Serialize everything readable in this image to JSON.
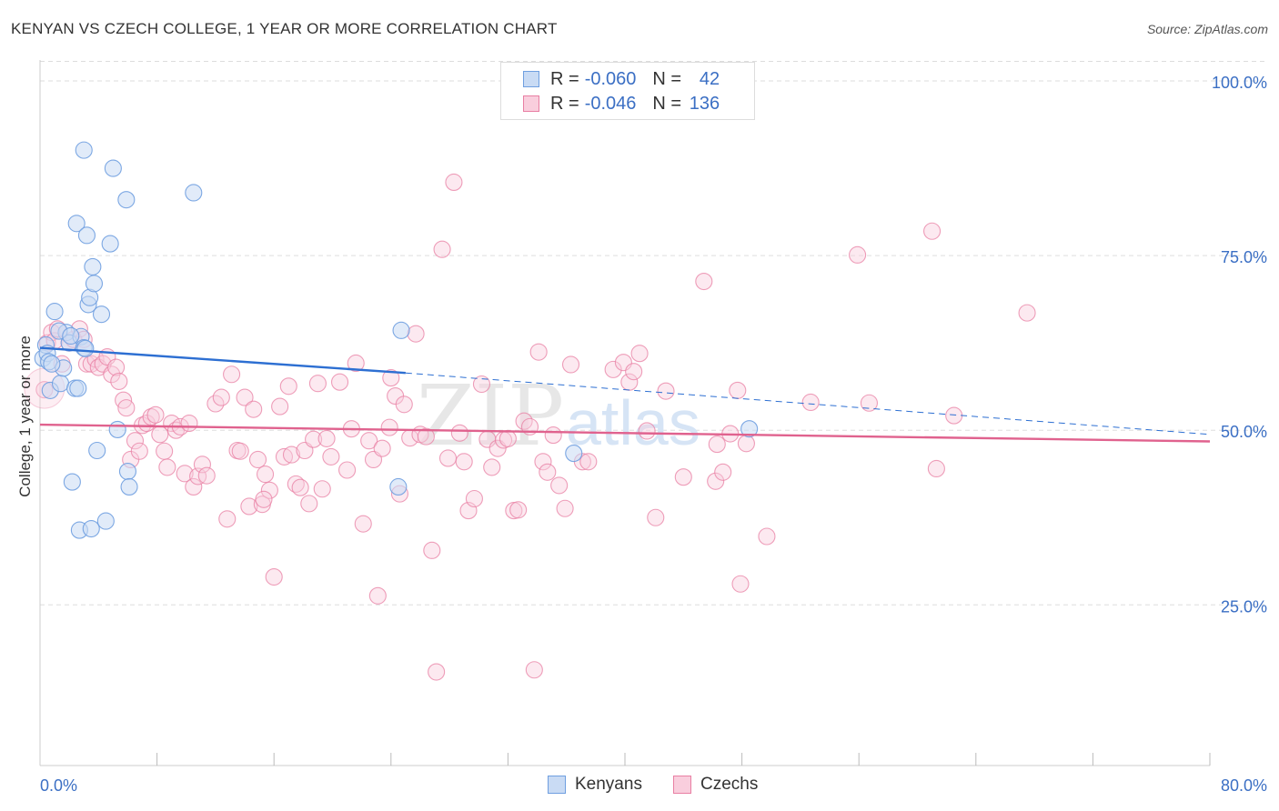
{
  "header": {
    "title": "KENYAN VS CZECH COLLEGE, 1 YEAR OR MORE CORRELATION CHART",
    "source": "Source: ZipAtlas.com"
  },
  "colors": {
    "kenyan": "#6f9fe0",
    "kenyan_fill": "#c9dbf4",
    "kenyan_line": "#2d6fd2",
    "czech": "#e87fa3",
    "czech_fill": "#f9cedd",
    "czech_line": "#e0628e",
    "axis_text": "#3b6fc4",
    "grid": "#dddddd"
  },
  "legend_top": {
    "kenyans": {
      "r_label": "R =",
      "r_value": "-0.060",
      "n_label": "N =",
      "n_value": "42"
    },
    "czechs": {
      "r_label": "R =",
      "r_value": "-0.046",
      "n_label": "N =",
      "n_value": "136"
    }
  },
  "legend_bottom": {
    "kenyans": "Kenyans",
    "czechs": "Czechs"
  },
  "watermark": {
    "zip": "ZIP",
    "atlas": "atlas"
  },
  "chart_data": {
    "type": "scatter",
    "title": "KENYAN VS CZECH COLLEGE, 1 YEAR OR MORE CORRELATION CHART",
    "xlabel": "",
    "ylabel": "College, 1 year or more",
    "xlim": [
      0,
      80
    ],
    "ylim": [
      2,
      103
    ],
    "x_tick_labels": [
      "0.0%",
      "80.0%"
    ],
    "y_ticks": [
      25,
      50,
      75,
      100
    ],
    "y_tick_labels": [
      "25.0%",
      "50.0%",
      "75.0%",
      "100.0%"
    ],
    "grid": true,
    "legend_position": "top-center",
    "series": [
      {
        "name": "Kenyans",
        "r": -0.06,
        "n": 42,
        "trend": {
          "x0": 0,
          "y0": 61.8,
          "x1": 25,
          "y1": 58.2,
          "dashed_to_x": 80,
          "dashed_to_y": 49.4
        },
        "points": [
          [
            0.2,
            60.3
          ],
          [
            0.4,
            62.2
          ],
          [
            0.5,
            61.0
          ],
          [
            0.6,
            59.8
          ],
          [
            0.7,
            55.7
          ],
          [
            1.0,
            67.0
          ],
          [
            1.4,
            56.7
          ],
          [
            1.6,
            58.9
          ],
          [
            1.8,
            64.0
          ],
          [
            2.0,
            62.5
          ],
          [
            2.2,
            42.6
          ],
          [
            2.4,
            56.0
          ],
          [
            2.6,
            56.0
          ],
          [
            2.5,
            79.6
          ],
          [
            2.7,
            35.7
          ],
          [
            2.8,
            63.4
          ],
          [
            3.0,
            61.8
          ],
          [
            3.0,
            90.1
          ],
          [
            3.2,
            77.9
          ],
          [
            3.3,
            68.0
          ],
          [
            3.4,
            69.0
          ],
          [
            3.5,
            35.9
          ],
          [
            3.6,
            73.4
          ],
          [
            3.7,
            71.0
          ],
          [
            3.9,
            47.1
          ],
          [
            4.2,
            66.6
          ],
          [
            4.5,
            37.0
          ],
          [
            4.8,
            76.7
          ],
          [
            5.0,
            87.5
          ],
          [
            5.3,
            50.1
          ],
          [
            5.9,
            83.0
          ],
          [
            6.0,
            44.1
          ],
          [
            6.1,
            41.9
          ],
          [
            10.5,
            84.0
          ],
          [
            24.7,
            64.3
          ],
          [
            24.5,
            41.9
          ],
          [
            36.5,
            46.7
          ],
          [
            48.5,
            50.2
          ],
          [
            1.3,
            64.2
          ],
          [
            2.1,
            63.5
          ],
          [
            0.8,
            59.5
          ],
          [
            3.1,
            61.7
          ]
        ]
      },
      {
        "name": "Czechs",
        "r": -0.046,
        "n": 136,
        "trend": {
          "x0": 0,
          "y0": 50.8,
          "x1": 80,
          "y1": 48.4
        },
        "points": [
          [
            0.3,
            55.8
          ],
          [
            0.5,
            62.5
          ],
          [
            0.8,
            64.0
          ],
          [
            1.0,
            62.8
          ],
          [
            1.2,
            64.5
          ],
          [
            1.5,
            59.5
          ],
          [
            2.0,
            62.5
          ],
          [
            2.3,
            63.0
          ],
          [
            2.7,
            64.5
          ],
          [
            3.0,
            63.0
          ],
          [
            3.2,
            59.5
          ],
          [
            3.5,
            59.5
          ],
          [
            3.8,
            60.2
          ],
          [
            4.0,
            59.0
          ],
          [
            4.3,
            59.5
          ],
          [
            4.6,
            60.5
          ],
          [
            4.9,
            58.0
          ],
          [
            5.2,
            59.0
          ],
          [
            5.4,
            57.0
          ],
          [
            5.7,
            54.3
          ],
          [
            5.9,
            53.2
          ],
          [
            6.2,
            45.8
          ],
          [
            6.5,
            48.5
          ],
          [
            6.8,
            47.0
          ],
          [
            7.0,
            50.7
          ],
          [
            7.3,
            51.0
          ],
          [
            7.6,
            51.9
          ],
          [
            7.9,
            52.2
          ],
          [
            8.2,
            49.4
          ],
          [
            8.5,
            47.0
          ],
          [
            8.7,
            44.7
          ],
          [
            9.0,
            51.0
          ],
          [
            9.3,
            50.0
          ],
          [
            9.6,
            50.5
          ],
          [
            9.9,
            43.8
          ],
          [
            10.2,
            51.0
          ],
          [
            10.5,
            41.9
          ],
          [
            10.8,
            43.4
          ],
          [
            11.1,
            45.1
          ],
          [
            11.4,
            43.5
          ],
          [
            12.0,
            53.8
          ],
          [
            12.4,
            54.7
          ],
          [
            12.8,
            37.3
          ],
          [
            13.1,
            58.0
          ],
          [
            13.5,
            47.1
          ],
          [
            13.7,
            47.0
          ],
          [
            14.0,
            54.7
          ],
          [
            14.3,
            39.1
          ],
          [
            14.6,
            53.0
          ],
          [
            14.9,
            45.8
          ],
          [
            15.2,
            39.4
          ],
          [
            15.4,
            43.7
          ],
          [
            15.7,
            41.4
          ],
          [
            16.0,
            29.0
          ],
          [
            16.4,
            53.4
          ],
          [
            16.7,
            46.2
          ],
          [
            17.0,
            56.3
          ],
          [
            17.2,
            46.5
          ],
          [
            17.5,
            42.3
          ],
          [
            17.8,
            41.8
          ],
          [
            18.1,
            47.1
          ],
          [
            18.4,
            39.5
          ],
          [
            18.7,
            48.7
          ],
          [
            19.0,
            56.7
          ],
          [
            19.3,
            41.6
          ],
          [
            19.6,
            48.8
          ],
          [
            19.9,
            46.2
          ],
          [
            20.5,
            56.9
          ],
          [
            21.0,
            44.3
          ],
          [
            21.3,
            50.2
          ],
          [
            21.6,
            59.6
          ],
          [
            22.1,
            36.6
          ],
          [
            22.5,
            48.5
          ],
          [
            22.8,
            45.8
          ],
          [
            23.1,
            26.3
          ],
          [
            23.4,
            47.4
          ],
          [
            23.9,
            50.4
          ],
          [
            24.3,
            54.9
          ],
          [
            24.6,
            40.9
          ],
          [
            24.9,
            53.7
          ],
          [
            25.3,
            48.9
          ],
          [
            25.7,
            63.8
          ],
          [
            26.0,
            49.4
          ],
          [
            26.4,
            49.1
          ],
          [
            26.8,
            32.8
          ],
          [
            27.1,
            15.4
          ],
          [
            27.5,
            75.9
          ],
          [
            27.9,
            46.0
          ],
          [
            28.3,
            85.5
          ],
          [
            28.7,
            49.6
          ],
          [
            29.0,
            45.5
          ],
          [
            29.3,
            38.5
          ],
          [
            29.7,
            40.2
          ],
          [
            30.2,
            56.6
          ],
          [
            30.6,
            48.7
          ],
          [
            30.9,
            44.7
          ],
          [
            31.3,
            47.4
          ],
          [
            31.7,
            48.6
          ],
          [
            32.0,
            48.8
          ],
          [
            32.4,
            38.5
          ],
          [
            32.7,
            38.6
          ],
          [
            33.1,
            51.3
          ],
          [
            33.5,
            50.5
          ],
          [
            33.8,
            15.7
          ],
          [
            34.1,
            61.2
          ],
          [
            34.4,
            45.5
          ],
          [
            34.7,
            44.0
          ],
          [
            35.1,
            49.3
          ],
          [
            35.5,
            42.1
          ],
          [
            35.9,
            38.8
          ],
          [
            36.3,
            59.4
          ],
          [
            37.1,
            45.5
          ],
          [
            37.5,
            45.5
          ],
          [
            39.2,
            58.7
          ],
          [
            39.9,
            59.7
          ],
          [
            40.3,
            56.9
          ],
          [
            40.6,
            58.4
          ],
          [
            41.0,
            61.0
          ],
          [
            41.5,
            49.9
          ],
          [
            42.1,
            37.5
          ],
          [
            42.8,
            55.6
          ],
          [
            44.0,
            43.3
          ],
          [
            45.4,
            71.3
          ],
          [
            46.2,
            42.7
          ],
          [
            46.7,
            44.0
          ],
          [
            47.2,
            49.5
          ],
          [
            47.7,
            55.7
          ],
          [
            47.9,
            28.0
          ],
          [
            48.3,
            48.1
          ],
          [
            49.7,
            34.8
          ],
          [
            52.7,
            54.0
          ],
          [
            55.9,
            75.1
          ],
          [
            56.7,
            53.9
          ],
          [
            61.0,
            78.5
          ],
          [
            61.3,
            44.5
          ],
          [
            62.5,
            52.1
          ],
          [
            67.5,
            66.8
          ],
          [
            46.3,
            48.0
          ],
          [
            24.0,
            57.5
          ],
          [
            15.3,
            40.1
          ]
        ]
      }
    ]
  }
}
